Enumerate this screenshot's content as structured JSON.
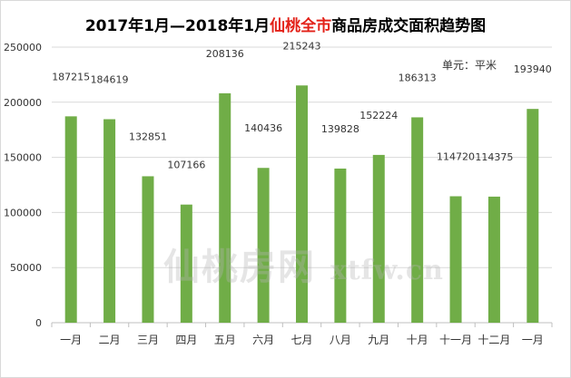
{
  "title": {
    "prefix": "2017年1月—2018年1月",
    "highlight": "仙桃全市",
    "suffix": "商品房成交面积趋势图"
  },
  "unit_label": "单元：平米",
  "watermark": {
    "cjk": "仙桃房网",
    "latin": "xtfw.cn"
  },
  "colors": {
    "bar": "#70ad47",
    "highlight": "#e32118",
    "grid": "#d9d9d9"
  },
  "chart_data": {
    "type": "bar",
    "title": "2017年1月—2018年1月仙桃全市商品房成交面积趋势图",
    "xlabel": "",
    "ylabel": "",
    "unit": "单元：平米",
    "categories": [
      "一月",
      "二月",
      "三月",
      "四月",
      "五月",
      "六月",
      "七月",
      "八月",
      "九月",
      "十月",
      "十一月",
      "十二月",
      "一月"
    ],
    "values": [
      187215,
      184619,
      132851,
      107166,
      208136,
      140436,
      215243,
      139828,
      152224,
      186313,
      114720,
      114375,
      193940
    ],
    "ylim": [
      0,
      250000
    ],
    "yticks": [
      0,
      50000,
      100000,
      150000,
      200000,
      250000
    ],
    "grid": true,
    "legend": "none",
    "data_labels": true
  }
}
